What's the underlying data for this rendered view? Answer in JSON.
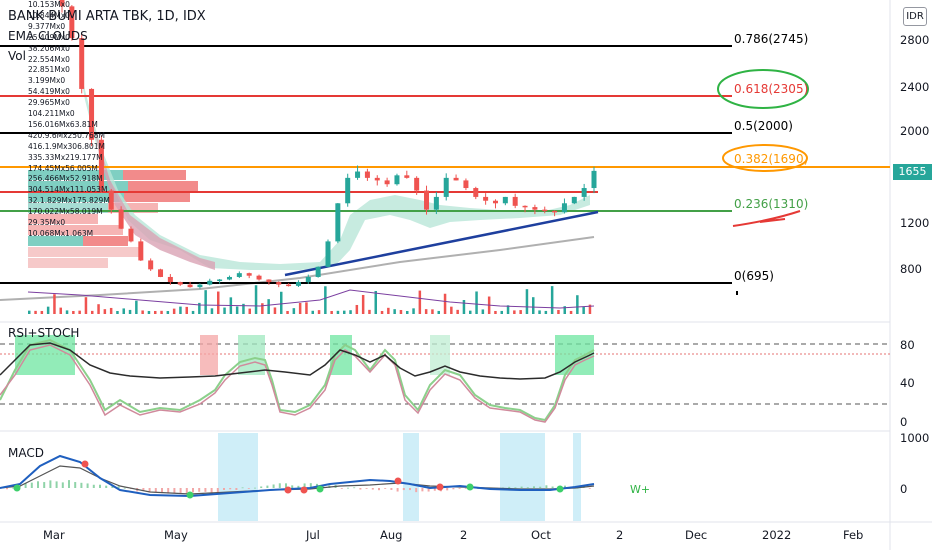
{
  "header": {
    "title": "BANK BUMI ARTA TBK, 1D, IDX",
    "indicator_1": "EMA CLOUDS",
    "indicator_2": "Vol",
    "currency": "IDR"
  },
  "panes": {
    "rsi_title": "RSI+STOCH",
    "macd_title": "MACD",
    "macd_signal_note": "W+"
  },
  "volume_profile_labels": [
    "10.153Mx0",
    "10.844Mx0",
    "9.377Mx0",
    "25.409Mx0",
    "38.206Mx0",
    "22.554Mx0",
    "22.851Mx0",
    "3.199Mx0",
    "54.419Mx0",
    "29.965Mx0",
    "104.211Mx0",
    "156.016Mx63.81M",
    "420.9.6Mx250.768M",
    "416.1.9Mx306.801M",
    "335.33Mx219.177M",
    "174.45Mx56.005M",
    "256.466Mx52.918M",
    "304.514Mx111.053M",
    "32.1.829Mx175.829M",
    "170.022Mx58.019M",
    "29.35Mx0",
    "10.068Mx1.063M"
  ],
  "price_axis_labels": [
    "2800",
    "2400",
    "2000",
    "1600",
    "1200",
    "800"
  ],
  "rsi_axis_labels": [
    "80",
    "40",
    "0"
  ],
  "macd_axis_labels": [
    "1000",
    "0"
  ],
  "time_axis_labels": [
    "Mar",
    "May",
    "Jul",
    "Aug",
    "2",
    "Oct",
    "2",
    "Dec",
    "2022",
    "Feb"
  ],
  "current_price": "1655",
  "colors": {
    "up": "#26a69a",
    "down": "#ef5350",
    "fib_black": "#000000",
    "fib_red": "#e53935",
    "fib_orange": "#ff9800",
    "fib_green": "#43a047",
    "trendline": "#1e3f9e",
    "macd_line": "#1f5fbf",
    "rsi_line": "#2b2b2b",
    "bg_highlight": "#cfeef8"
  },
  "chart_data": {
    "type": "line",
    "title": "BANK BUMI ARTA TBK, 1D, IDX",
    "currency": "IDR",
    "x_ticks": [
      "Mar",
      "May",
      "Jul",
      "Aug",
      "2",
      "Oct",
      "2",
      "Dec",
      "2022",
      "Feb"
    ],
    "y_range": [
      560,
      3000
    ],
    "fibonacci_levels": [
      {
        "label": "0.786(2745)",
        "value": 2745
      },
      {
        "label": "0.618(2305)",
        "value": 2305
      },
      {
        "label": "0.5(2000)",
        "value": 2000
      },
      {
        "label": "0.382(1690)",
        "value": 1690
      },
      {
        "label": "0.236(1310)",
        "value": 1310
      },
      {
        "label": "0(695)",
        "value": 695
      }
    ],
    "series": [
      {
        "values": [
          2950,
          2700,
          2300,
          1900,
          1500,
          1350,
          1200,
          1100,
          950,
          880,
          820,
          780,
          760,
          740,
          760,
          790,
          800,
          820,
          850,
          830,
          800,
          780,
          760,
          750,
          780,
          820,
          900,
          1100,
          1400,
          1600,
          1650,
          1600,
          1580,
          1550,
          1620,
          1600,
          1500,
          1350,
          1450,
          1600,
          1580,
          1520,
          1450,
          1420,
          1400,
          1450,
          1380,
          1370,
          1350,
          1340,
          1330,
          1400,
          1450,
          1520,
          1655
        ]
      }
    ],
    "current_price": 1655
  }
}
